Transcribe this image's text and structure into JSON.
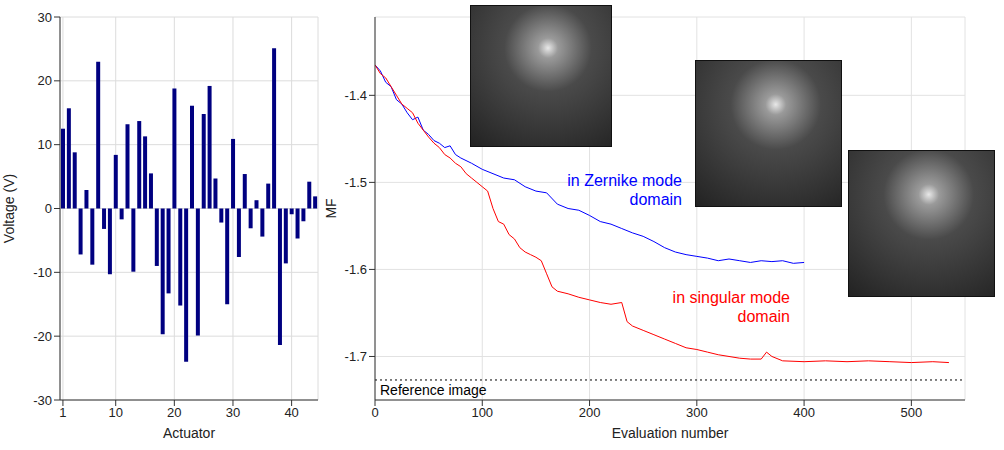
{
  "chart_data": [
    {
      "type": "bar",
      "x_label": "Actuator",
      "y_label": "Voltage (V)",
      "x": [
        1,
        2,
        3,
        4,
        5,
        6,
        7,
        8,
        9,
        10,
        11,
        12,
        13,
        14,
        15,
        16,
        17,
        18,
        19,
        20,
        21,
        22,
        23,
        24,
        25,
        26,
        27,
        28,
        29,
        30,
        31,
        32,
        33,
        34,
        35,
        36,
        37,
        38,
        39,
        40,
        41,
        42,
        43,
        44
      ],
      "values": [
        12.5,
        15.7,
        8.8,
        -7.2,
        2.9,
        -8.8,
        23,
        -3.2,
        -10.3,
        8.4,
        -1.7,
        13.2,
        -9.9,
        13.7,
        11.3,
        5.5,
        -9,
        -19.7,
        -13.3,
        18.8,
        -15.2,
        -24,
        16.1,
        -19.9,
        14.8,
        19.2,
        4.7,
        -2.2,
        -15,
        10.9,
        -7.6,
        5.4,
        -3.1,
        1.3,
        -4.4,
        3.9,
        25.1,
        -21.4,
        -8.6,
        -0.9,
        -4.7,
        -2,
        4.2,
        1.9
      ],
      "color": "#000080",
      "xlim": [
        0.5,
        44.5
      ],
      "xticks": [
        1,
        10,
        20,
        30,
        40
      ],
      "ylim": [
        -30,
        30
      ],
      "yticks": [
        -30,
        -20,
        -10,
        0,
        10,
        20,
        30
      ],
      "grid": true
    },
    {
      "type": "line",
      "x_label": "Evaluation number",
      "y_label": "MF",
      "series": [
        {
          "name": "in Zernike mode domain",
          "color": "#0000ff",
          "x": [
            0,
            5,
            10,
            15,
            20,
            25,
            30,
            35,
            40,
            45,
            50,
            55,
            60,
            65,
            70,
            75,
            80,
            90,
            100,
            110,
            120,
            130,
            140,
            150,
            160,
            170,
            180,
            190,
            200,
            210,
            220,
            230,
            240,
            250,
            260,
            270,
            280,
            290,
            300,
            310,
            320,
            330,
            340,
            350,
            360,
            370,
            380,
            390,
            400
          ],
          "values": [
            -1.365,
            -1.372,
            -1.385,
            -1.39,
            -1.405,
            -1.41,
            -1.42,
            -1.428,
            -1.425,
            -1.44,
            -1.445,
            -1.452,
            -1.455,
            -1.46,
            -1.458,
            -1.468,
            -1.472,
            -1.478,
            -1.485,
            -1.49,
            -1.495,
            -1.497,
            -1.505,
            -1.51,
            -1.512,
            -1.525,
            -1.53,
            -1.532,
            -1.538,
            -1.545,
            -1.548,
            -1.553,
            -1.558,
            -1.562,
            -1.568,
            -1.575,
            -1.58,
            -1.583,
            -1.585,
            -1.587,
            -1.59,
            -1.588,
            -1.59,
            -1.592,
            -1.59,
            -1.591,
            -1.59,
            -1.593,
            -1.592
          ]
        },
        {
          "name": "in singular mode domain",
          "color": "#ff0000",
          "x": [
            0,
            5,
            10,
            15,
            20,
            25,
            30,
            35,
            40,
            45,
            50,
            55,
            60,
            65,
            70,
            75,
            80,
            85,
            90,
            95,
            100,
            105,
            110,
            115,
            120,
            125,
            130,
            135,
            140,
            145,
            150,
            155,
            160,
            165,
            170,
            180,
            190,
            200,
            210,
            220,
            230,
            235,
            240,
            250,
            260,
            270,
            280,
            290,
            300,
            310,
            320,
            330,
            340,
            350,
            360,
            365,
            370,
            380,
            400,
            420,
            440,
            460,
            480,
            500,
            520,
            535
          ],
          "values": [
            -1.365,
            -1.375,
            -1.38,
            -1.39,
            -1.4,
            -1.41,
            -1.415,
            -1.42,
            -1.432,
            -1.44,
            -1.448,
            -1.455,
            -1.46,
            -1.468,
            -1.472,
            -1.478,
            -1.482,
            -1.49,
            -1.495,
            -1.5,
            -1.505,
            -1.51,
            -1.53,
            -1.545,
            -1.548,
            -1.56,
            -1.565,
            -1.575,
            -1.58,
            -1.583,
            -1.586,
            -1.59,
            -1.605,
            -1.62,
            -1.625,
            -1.628,
            -1.632,
            -1.635,
            -1.638,
            -1.64,
            -1.638,
            -1.66,
            -1.665,
            -1.67,
            -1.675,
            -1.68,
            -1.685,
            -1.69,
            -1.692,
            -1.695,
            -1.698,
            -1.7,
            -1.702,
            -1.703,
            -1.703,
            -1.695,
            -1.7,
            -1.705,
            -1.706,
            -1.705,
            -1.706,
            -1.705,
            -1.706,
            -1.707,
            -1.706,
            -1.707
          ]
        }
      ],
      "reference_line": {
        "value": -1.727,
        "label": "Reference image"
      },
      "xlim": [
        0,
        550
      ],
      "xticks": [
        0,
        100,
        200,
        300,
        400,
        500
      ],
      "ylim": [
        -1.75,
        -1.31
      ],
      "yticks": [
        -1.7,
        -1.6,
        -1.5,
        -1.4
      ],
      "grid": true
    }
  ]
}
